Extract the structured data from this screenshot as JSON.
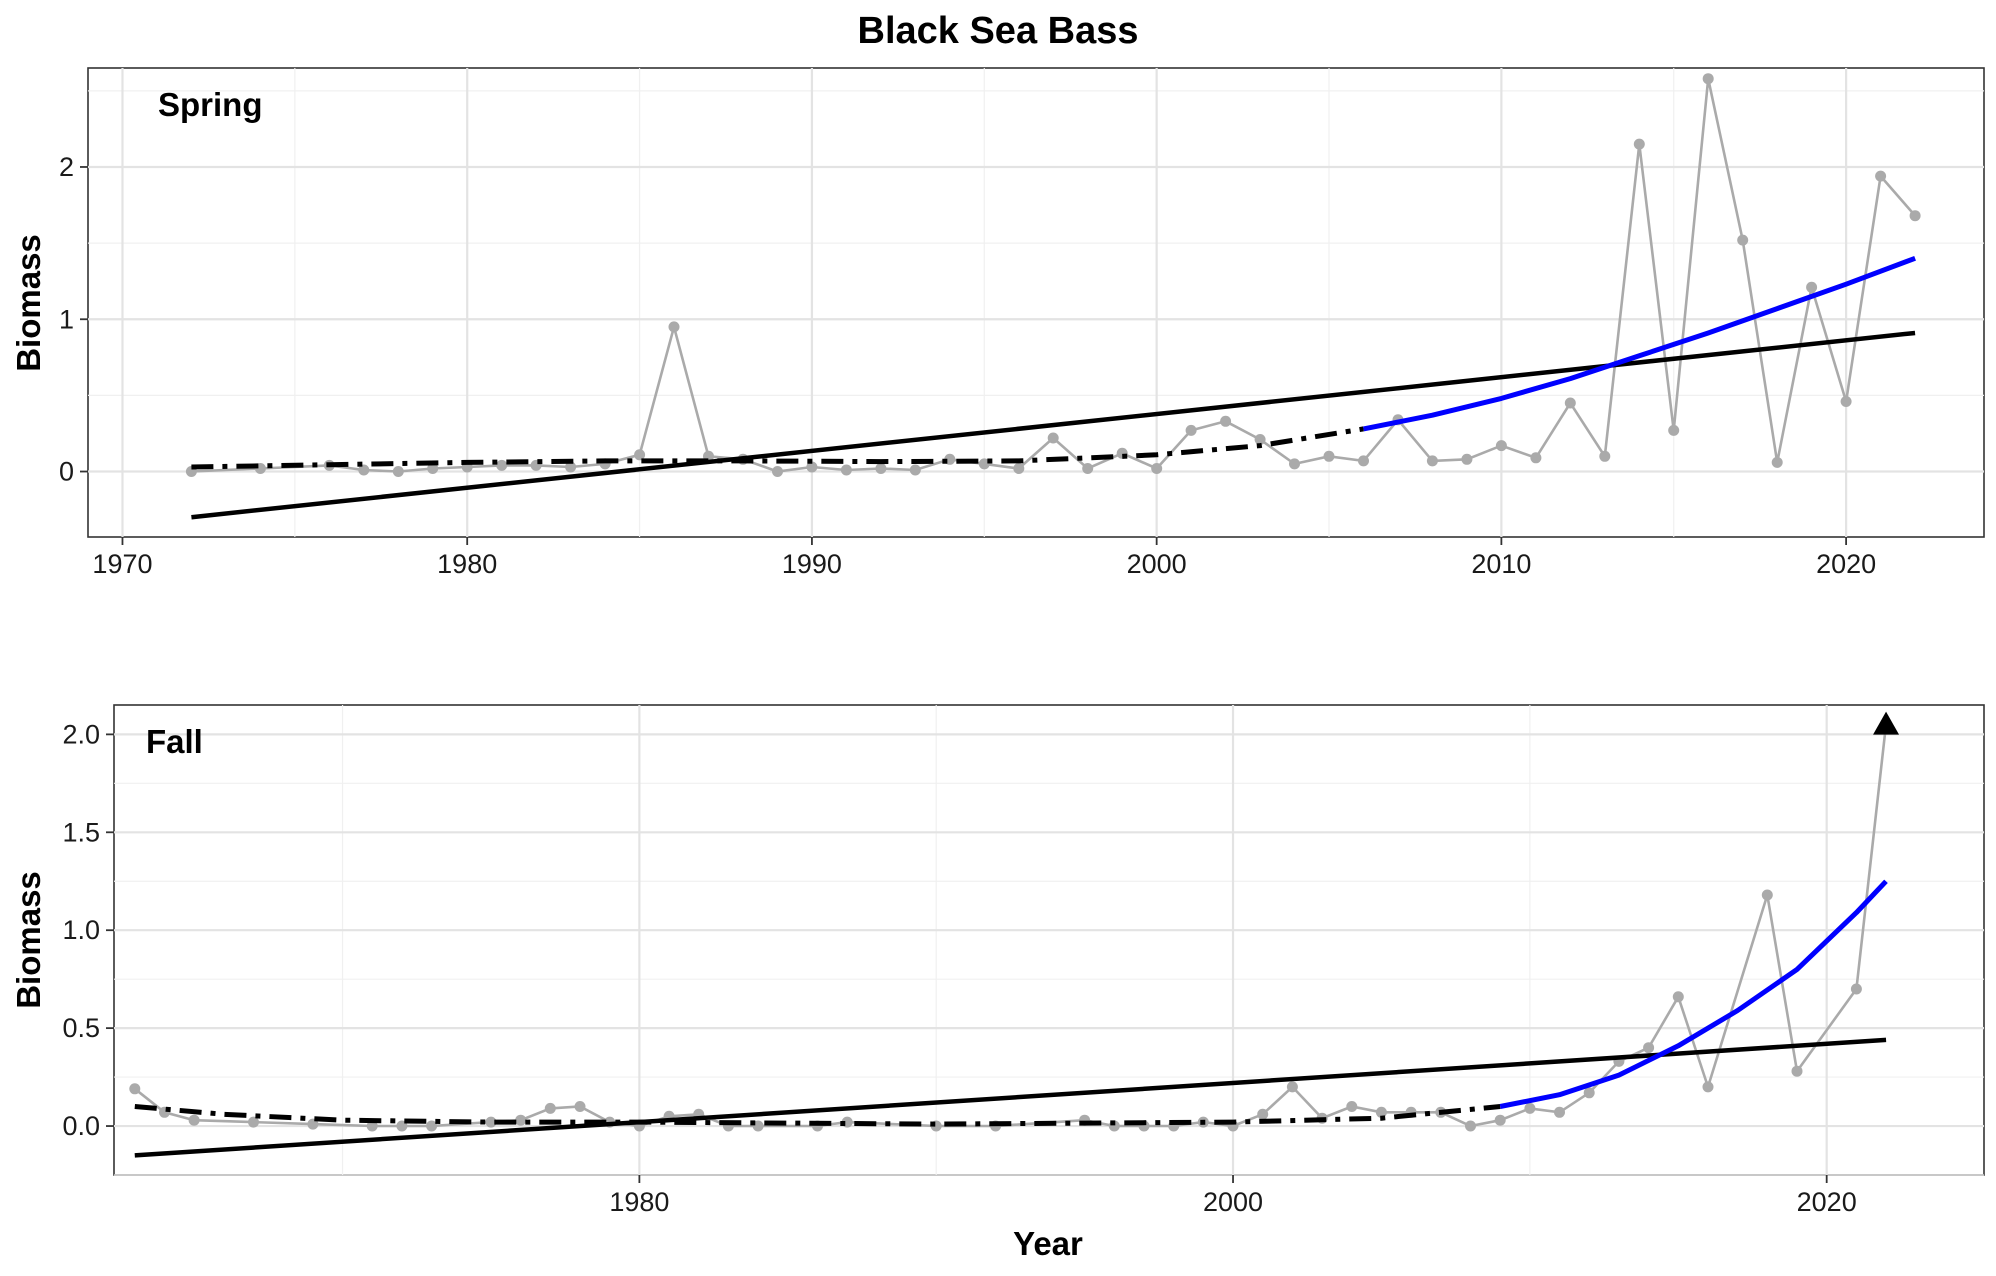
{
  "chart_data": {
    "type": "line",
    "title": "Black Sea Bass",
    "xlabel": "Year",
    "colors": {
      "observed": "#aaaaaa",
      "long_term_trend": "#000000",
      "gam_fit": "#000000",
      "recent_trend": "#0000ff"
    },
    "panels": [
      {
        "label": "Spring",
        "ylabel": "Biomass",
        "xlim": [
          1969,
          2024
        ],
        "ylim": [
          -0.43,
          2.65
        ],
        "x_ticks": [
          1970,
          1980,
          1990,
          2000,
          2010,
          2020
        ],
        "x_tick_labels": [
          "1970",
          "1980",
          "1990",
          "2000",
          "2010",
          "2020"
        ],
        "y_ticks": [
          0,
          1,
          2
        ],
        "y_tick_labels": [
          "0",
          "1",
          "2"
        ],
        "observed": {
          "x": [
            1972,
            1974,
            1976,
            1977,
            1978,
            1979,
            1980,
            1981,
            1982,
            1983,
            1984,
            1985,
            1986,
            1987,
            1988,
            1989,
            1990,
            1991,
            1992,
            1993,
            1994,
            1995,
            1996,
            1997,
            1998,
            1999,
            2000,
            2001,
            2002,
            2003,
            2004,
            2005,
            2006,
            2007,
            2008,
            2009,
            2010,
            2011,
            2012,
            2013,
            2014,
            2015,
            2016,
            2017,
            2018,
            2019,
            2020,
            2021,
            2022
          ],
          "y": [
            0.0,
            0.02,
            0.04,
            0.01,
            0.0,
            0.02,
            0.03,
            0.04,
            0.04,
            0.03,
            0.05,
            0.11,
            0.95,
            0.1,
            0.08,
            0.0,
            0.03,
            0.01,
            0.02,
            0.01,
            0.08,
            0.05,
            0.02,
            0.22,
            0.02,
            0.12,
            0.02,
            0.27,
            0.33,
            0.21,
            0.05,
            0.1,
            0.07,
            0.34,
            0.07,
            0.08,
            0.17,
            0.09,
            0.45,
            0.1,
            2.15,
            0.27,
            2.58,
            1.52,
            0.06,
            1.21,
            0.46,
            1.94,
            1.68
          ]
        },
        "long_term_trend": {
          "x": [
            1972,
            2022
          ],
          "y": [
            -0.3,
            0.91
          ]
        },
        "gam_fit": {
          "x": [
            1972,
            1976,
            1980,
            1984,
            1988,
            1992,
            1996,
            2000,
            2003,
            2006
          ],
          "y": [
            0.03,
            0.045,
            0.06,
            0.07,
            0.07,
            0.065,
            0.07,
            0.11,
            0.17,
            0.28
          ]
        },
        "recent_trend": {
          "x": [
            2006,
            2008,
            2010,
            2012,
            2014,
            2016,
            2018,
            2020,
            2022
          ],
          "y": [
            0.28,
            0.37,
            0.48,
            0.61,
            0.76,
            0.91,
            1.07,
            1.23,
            1.4
          ]
        }
      },
      {
        "label": "Fall",
        "ylabel": "Biomass",
        "xlim": [
          1962.3,
          2025.3
        ],
        "ylim": [
          -0.25,
          2.15
        ],
        "x_ticks": [
          1980,
          2000,
          2020
        ],
        "x_tick_labels": [
          "1980",
          "2000",
          "2020"
        ],
        "y_ticks": [
          0.0,
          0.5,
          1.0,
          1.5,
          2.0
        ],
        "y_tick_labels": [
          "0.0",
          "0.5",
          "1.0",
          "1.5",
          "2.0"
        ],
        "observed": {
          "x": [
            1963,
            1964,
            1965,
            1967,
            1969,
            1971,
            1972,
            1973,
            1975,
            1976,
            1977,
            1978,
            1979,
            1980,
            1981,
            1982,
            1983,
            1984,
            1986,
            1987,
            1990,
            1992,
            1995,
            1996,
            1997,
            1998,
            1999,
            2000,
            2001,
            2002,
            2003,
            2004,
            2005,
            2006,
            2007,
            2008,
            2009,
            2010,
            2011,
            2012,
            2013,
            2014,
            2015,
            2016,
            2018,
            2019,
            2021,
            2022
          ],
          "y": [
            0.19,
            0.07,
            0.03,
            0.02,
            0.01,
            0.0,
            0.0,
            0.0,
            0.02,
            0.03,
            0.09,
            0.1,
            0.02,
            0.0,
            0.05,
            0.06,
            0.0,
            0.0,
            0.0,
            0.02,
            0.0,
            0.0,
            0.03,
            0.0,
            0.0,
            0.0,
            0.02,
            0.0,
            0.06,
            0.2,
            0.04,
            0.1,
            0.07,
            0.07,
            0.07,
            0.0,
            0.03,
            0.09,
            0.07,
            0.17,
            0.33,
            0.4,
            0.66,
            0.2,
            1.18,
            0.28,
            0.7,
            2.05
          ]
        },
        "annotation_marker": {
          "shape": "triangle",
          "x": 2022,
          "y": 2.05
        },
        "long_term_trend": {
          "x": [
            1963,
            2022
          ],
          "y": [
            -0.15,
            0.44
          ]
        },
        "gam_fit": {
          "x": [
            1963,
            1966,
            1970,
            1975,
            1980,
            1985,
            1990,
            1995,
            2000,
            2005,
            2009
          ],
          "y": [
            0.1,
            0.06,
            0.03,
            0.02,
            0.02,
            0.015,
            0.01,
            0.015,
            0.02,
            0.04,
            0.1
          ]
        },
        "recent_trend": {
          "x": [
            2009,
            2011,
            2013,
            2015,
            2017,
            2019,
            2021,
            2022
          ],
          "y": [
            0.1,
            0.16,
            0.26,
            0.41,
            0.59,
            0.8,
            1.09,
            1.25
          ]
        }
      }
    ]
  }
}
